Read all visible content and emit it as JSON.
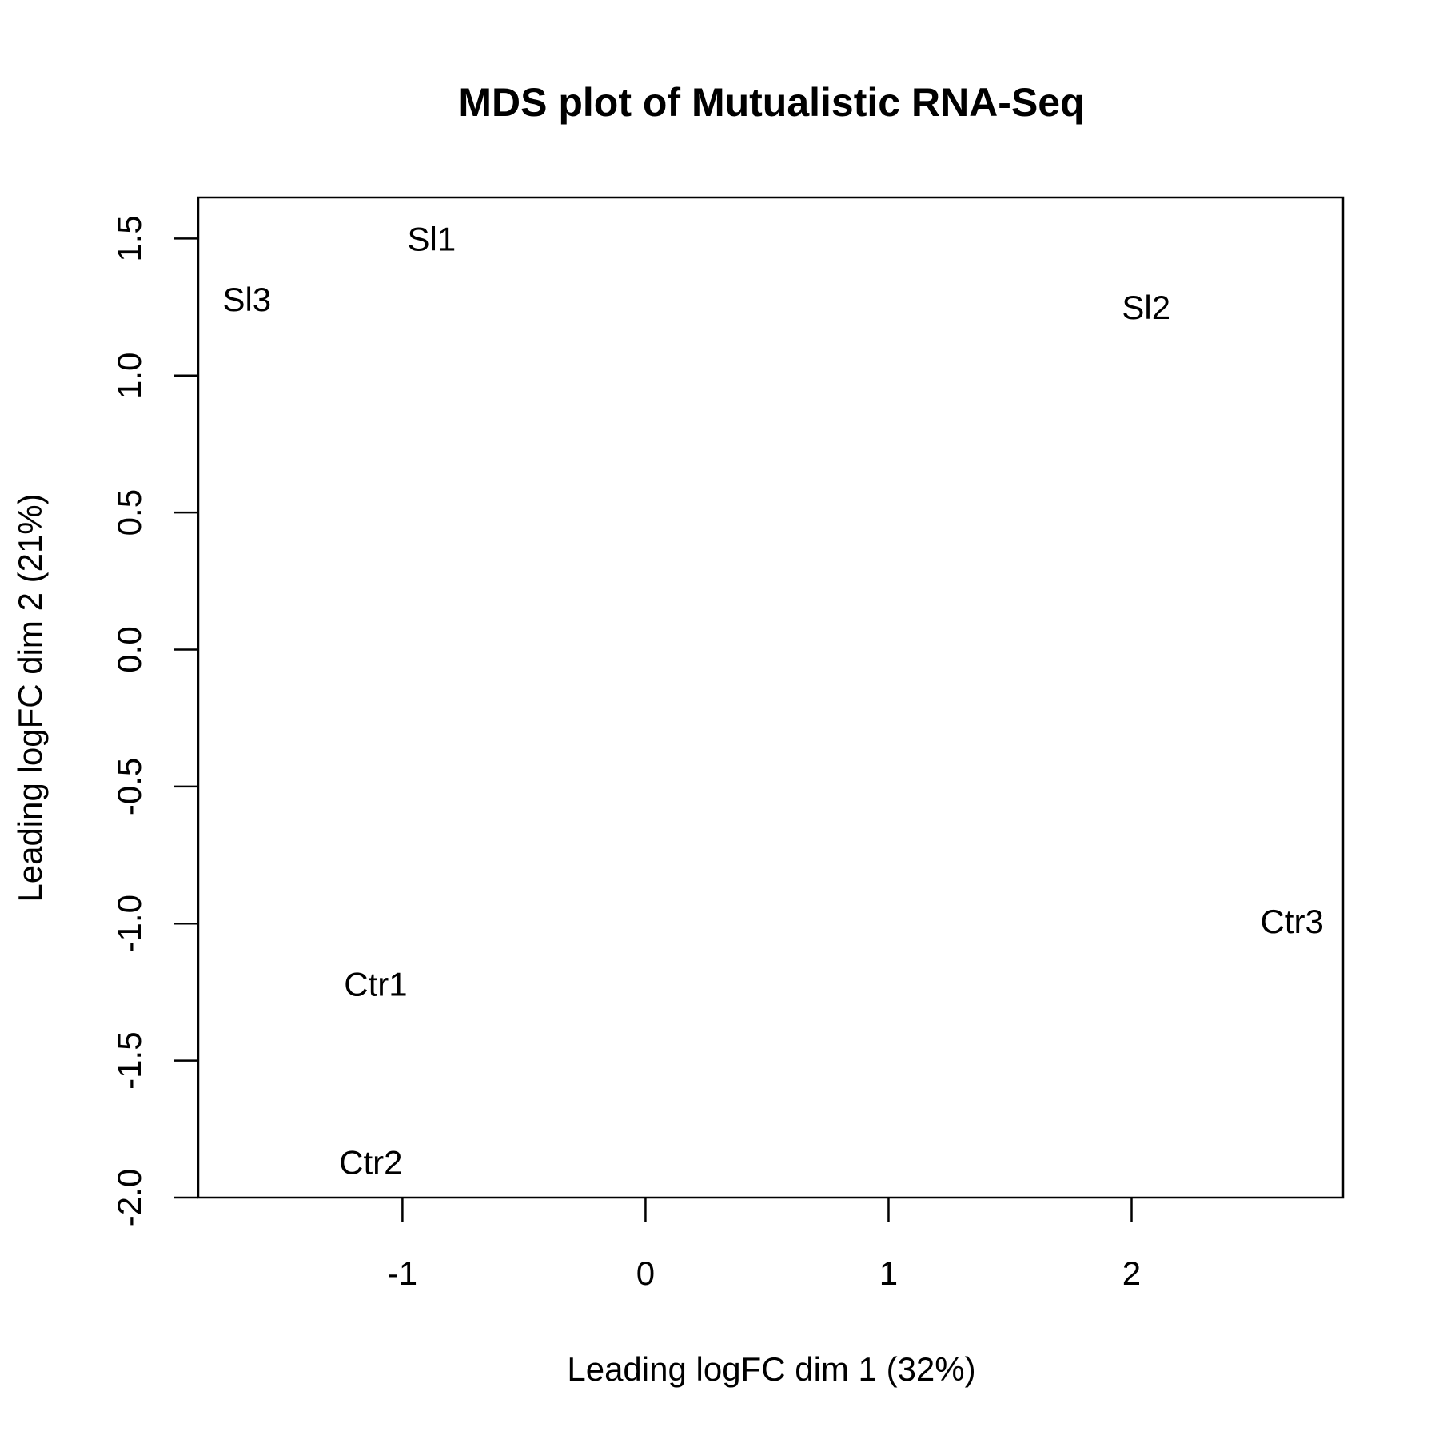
{
  "chart_data": {
    "type": "scatter",
    "title": "MDS plot of Mutualistic RNA-Seq",
    "xlabel": "Leading logFC dim 1 (32%)",
    "ylabel": "Leading logFC dim 2 (21%)",
    "xlim": [
      -1.84,
      2.87
    ],
    "ylim": [
      -2.0,
      1.65
    ],
    "xticks": [
      {
        "value": -1,
        "label": "-1"
      },
      {
        "value": 0,
        "label": "0"
      },
      {
        "value": 1,
        "label": "1"
      },
      {
        "value": 2,
        "label": "2"
      }
    ],
    "yticks": [
      {
        "value": -2.0,
        "label": "-2.0"
      },
      {
        "value": -1.5,
        "label": "-1.5"
      },
      {
        "value": -1.0,
        "label": "-1.0"
      },
      {
        "value": -0.5,
        "label": "-0.5"
      },
      {
        "value": 0.0,
        "label": "0.0"
      },
      {
        "value": 0.5,
        "label": "0.5"
      },
      {
        "value": 1.0,
        "label": "1.0"
      },
      {
        "value": 1.5,
        "label": "1.5"
      }
    ],
    "points": [
      {
        "label": "Sl1",
        "x": -0.88,
        "y": 1.5
      },
      {
        "label": "Sl3",
        "x": -1.64,
        "y": 1.28
      },
      {
        "label": "Sl2",
        "x": 2.06,
        "y": 1.25
      },
      {
        "label": "Ctr3",
        "x": 2.66,
        "y": -0.99
      },
      {
        "label": "Ctr1",
        "x": -1.11,
        "y": -1.22
      },
      {
        "label": "Ctr2",
        "x": -1.13,
        "y": -1.87
      }
    ],
    "grid": false,
    "legend": "none"
  }
}
